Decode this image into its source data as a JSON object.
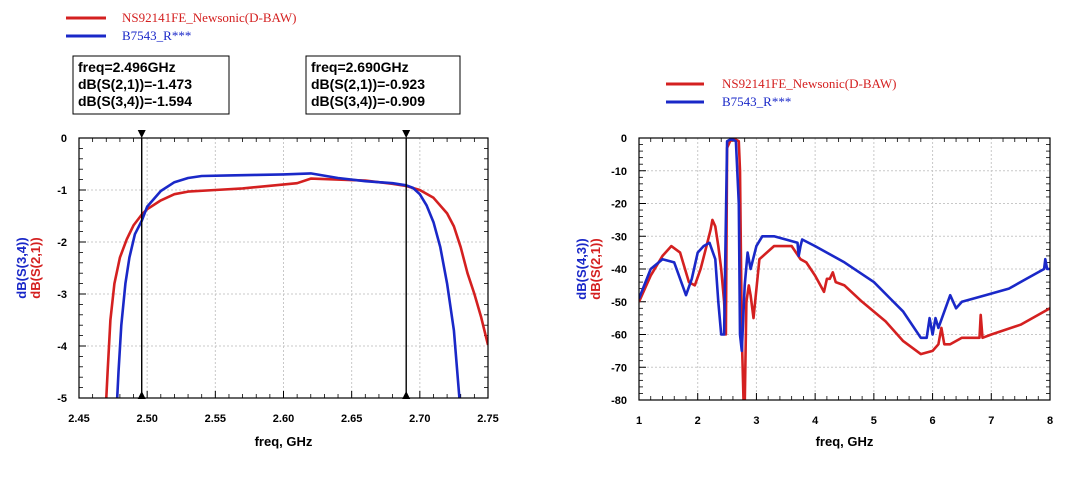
{
  "charts": [
    {
      "legend": [
        {
          "name": "NS92141FE_Newsonic(D-BAW)",
          "color": "#d42020"
        },
        {
          "name": "B7543_R***",
          "color": "#1a28c8"
        }
      ],
      "markers": [
        {
          "lines": [
            "freq=2.496GHz",
            "dB(S(2,1))=-1.473",
            "dB(S(3,4))=-1.594"
          ],
          "freq": 2.496
        },
        {
          "lines": [
            "freq=2.690GHz",
            "dB(S(2,1))=-0.923",
            "dB(S(3,4))=-0.909"
          ],
          "freq": 2.69
        }
      ],
      "xlabel": "freq, GHz",
      "ylabel_parts": [
        {
          "text": "dB(S(3,4))",
          "color": "#1a28c8"
        },
        {
          "text": "dB(S(2,1))",
          "color": "#d42020"
        }
      ],
      "xticks": [
        "2.45",
        "2.50",
        "2.55",
        "2.60",
        "2.65",
        "2.70",
        "2.75"
      ],
      "yticks": [
        "0",
        "-1",
        "-2",
        "-3",
        "-4",
        "-5"
      ]
    },
    {
      "legend": [
        {
          "name": "NS92141FE_Newsonic(D-BAW)",
          "color": "#d42020"
        },
        {
          "name": "B7543_R***",
          "color": "#1a28c8"
        }
      ],
      "xlabel": "freq, GHz",
      "ylabel_parts": [
        {
          "text": "dB(S(4,3))",
          "color": "#1a28c8"
        },
        {
          "text": "dB(S(2,1))",
          "color": "#d42020"
        }
      ],
      "xticks": [
        "1",
        "2",
        "3",
        "4",
        "5",
        "6",
        "7",
        "8"
      ],
      "yticks": [
        "0",
        "-10",
        "-20",
        "-30",
        "-40",
        "-50",
        "-60",
        "-70",
        "-80"
      ]
    }
  ],
  "chart_data": [
    {
      "type": "line",
      "xlabel": "freq, GHz",
      "ylabel": "dB(S(3,4)) dB(S(2,1))",
      "xlim": [
        2.45,
        2.75
      ],
      "ylim": [
        -5,
        0
      ],
      "grid": true,
      "legend_position": "top-left",
      "series": [
        {
          "name": "NS92141FE_Newsonic(D-BAW)",
          "color": "#d42020",
          "x": [
            2.47,
            2.471,
            2.473,
            2.476,
            2.48,
            2.485,
            2.49,
            2.496,
            2.5,
            2.51,
            2.52,
            2.53,
            2.55,
            2.57,
            2.59,
            2.61,
            2.62,
            2.64,
            2.66,
            2.68,
            2.69,
            2.7,
            2.71,
            2.72,
            2.725,
            2.73,
            2.735,
            2.74,
            2.745,
            2.75
          ],
          "y": [
            -5.0,
            -4.5,
            -3.5,
            -2.8,
            -2.3,
            -1.95,
            -1.68,
            -1.473,
            -1.37,
            -1.2,
            -1.08,
            -1.03,
            -1.0,
            -0.97,
            -0.92,
            -0.87,
            -0.78,
            -0.8,
            -0.82,
            -0.88,
            -0.923,
            -1.0,
            -1.15,
            -1.45,
            -1.7,
            -2.1,
            -2.6,
            -3.0,
            -3.45,
            -3.98
          ]
        },
        {
          "name": "B7543_R***",
          "color": "#1a28c8",
          "x": [
            2.478,
            2.479,
            2.481,
            2.484,
            2.487,
            2.491,
            2.496,
            2.5,
            2.51,
            2.52,
            2.53,
            2.54,
            2.56,
            2.58,
            2.6,
            2.62,
            2.64,
            2.66,
            2.68,
            2.69,
            2.695,
            2.7,
            2.705,
            2.71,
            2.715,
            2.72,
            2.725,
            2.729
          ],
          "y": [
            -5.0,
            -4.5,
            -3.6,
            -2.8,
            -2.3,
            -1.85,
            -1.594,
            -1.32,
            -1.02,
            -0.85,
            -0.77,
            -0.73,
            -0.72,
            -0.71,
            -0.7,
            -0.68,
            -0.77,
            -0.83,
            -0.87,
            -0.909,
            -0.96,
            -1.08,
            -1.3,
            -1.62,
            -2.1,
            -2.8,
            -3.7,
            -5.0
          ]
        }
      ]
    },
    {
      "type": "line",
      "xlabel": "freq, GHz",
      "ylabel": "dB(S(4,3)) dB(S(2,1))",
      "xlim": [
        1,
        8
      ],
      "ylim": [
        -80,
        0
      ],
      "grid": true,
      "legend_position": "top-left",
      "series": [
        {
          "name": "NS92141FE_Newsonic(D-BAW)",
          "color": "#d42020",
          "x": [
            1.0,
            1.2,
            1.4,
            1.55,
            1.7,
            1.85,
            1.95,
            2.05,
            2.15,
            2.22,
            2.25,
            2.3,
            2.35,
            2.4,
            2.45,
            2.48,
            2.5,
            2.55,
            2.6,
            2.65,
            2.7,
            2.72,
            2.75,
            2.78,
            2.8,
            2.83,
            2.87,
            2.9,
            2.95,
            3.05,
            3.3,
            3.6,
            3.75,
            3.85,
            4.0,
            4.15,
            4.2,
            4.25,
            4.3,
            4.35,
            4.5,
            4.8,
            5.2,
            5.5,
            5.8,
            6.0,
            6.1,
            6.15,
            6.2,
            6.3,
            6.5,
            6.8,
            6.82,
            6.85,
            7.0,
            7.5,
            8.0
          ],
          "y": [
            -50,
            -42,
            -36,
            -33,
            -35,
            -44,
            -45,
            -40,
            -33,
            -28,
            -25,
            -27,
            -33,
            -40,
            -50,
            -60,
            -3,
            -1,
            -0.5,
            -0.5,
            -1,
            -10,
            -60,
            -80,
            -82,
            -50,
            -45,
            -48,
            -55,
            -37,
            -33,
            -33,
            -37,
            -38,
            -42,
            -47,
            -43,
            -43,
            -41,
            -44,
            -45,
            -50,
            -56,
            -62,
            -66,
            -65,
            -63,
            -58,
            -63,
            -63,
            -61,
            -61,
            -54,
            -61,
            -60,
            -57,
            -52
          ]
        },
        {
          "name": "B7543_R***",
          "color": "#1a28c8",
          "x": [
            1.0,
            1.2,
            1.4,
            1.6,
            1.8,
            1.9,
            2.0,
            2.1,
            2.2,
            2.3,
            2.35,
            2.4,
            2.45,
            2.5,
            2.55,
            2.6,
            2.65,
            2.7,
            2.72,
            2.75,
            2.8,
            2.85,
            2.9,
            3.0,
            3.1,
            3.3,
            3.5,
            3.7,
            3.72,
            3.75,
            3.78,
            4.0,
            4.5,
            5.0,
            5.5,
            5.8,
            5.9,
            5.95,
            6.0,
            6.05,
            6.1,
            6.3,
            6.4,
            6.5,
            6.9,
            7.3,
            7.6,
            7.9,
            7.92,
            7.95,
            8.0
          ],
          "y": [
            -49,
            -40,
            -37,
            -38,
            -48,
            -43,
            -35,
            -33,
            -32,
            -37,
            -50,
            -60,
            -60,
            -1,
            -0.5,
            -0.5,
            -1,
            -20,
            -60,
            -65,
            -45,
            -35,
            -40,
            -33,
            -30,
            -30,
            -31,
            -32,
            -36,
            -33,
            -31,
            -33,
            -38,
            -44,
            -53,
            -61,
            -61,
            -55,
            -60,
            -55,
            -58,
            -48,
            -52,
            -50,
            -48,
            -46,
            -43,
            -40,
            -37,
            -40,
            -40
          ]
        }
      ]
    }
  ]
}
